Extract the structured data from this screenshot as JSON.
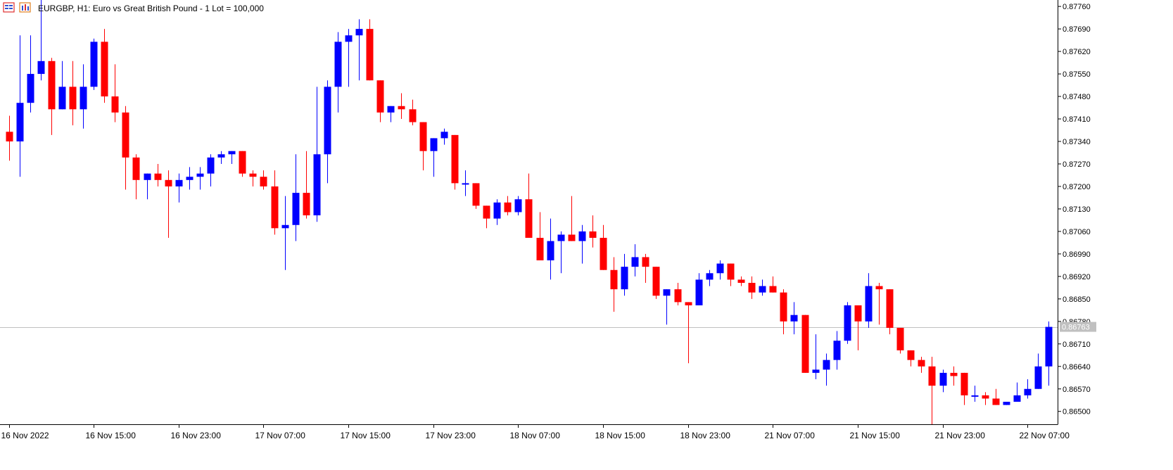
{
  "header": {
    "title": "EURGBP, H1:  Euro vs Great British Pound  - 1 Lot = 100,000"
  },
  "colors": {
    "bull": "#0000ff",
    "bear": "#ff0000",
    "axis": "#000000",
    "price_line": "#c0c0c0",
    "price_tag_bg": "#c0c0c0",
    "price_tag_text": "#ffffff"
  },
  "chart_data": {
    "type": "candlestick",
    "symbol": "EURGBP",
    "timeframe": "H1",
    "current_price": "0.86763",
    "ylim": [
      0.8646,
      0.8778
    ],
    "y_ticks": [
      "0.87760",
      "0.87690",
      "0.87620",
      "0.87550",
      "0.87480",
      "0.87410",
      "0.87340",
      "0.87270",
      "0.87200",
      "0.87130",
      "0.87060",
      "0.86990",
      "0.86920",
      "0.86850",
      "0.86780",
      "0.86710",
      "0.86640",
      "0.86570",
      "0.86500"
    ],
    "x_ticks": [
      {
        "index": 0,
        "label": "16 Nov 2022"
      },
      {
        "index": 8,
        "label": "16 Nov 15:00"
      },
      {
        "index": 16,
        "label": "16 Nov 23:00"
      },
      {
        "index": 24,
        "label": "17 Nov 07:00"
      },
      {
        "index": 32,
        "label": "17 Nov 15:00"
      },
      {
        "index": 40,
        "label": "17 Nov 23:00"
      },
      {
        "index": 48,
        "label": "18 Nov 07:00"
      },
      {
        "index": 56,
        "label": "18 Nov 15:00"
      },
      {
        "index": 64,
        "label": "18 Nov 23:00"
      },
      {
        "index": 72,
        "label": "21 Nov 07:00"
      },
      {
        "index": 80,
        "label": "21 Nov 15:00"
      },
      {
        "index": 88,
        "label": "21 Nov 23:00"
      },
      {
        "index": 96,
        "label": "22 Nov 07:00"
      }
    ],
    "candles": [
      [
        0.8737,
        0.8742,
        0.8728,
        0.8734
      ],
      [
        0.8734,
        0.8767,
        0.8723,
        0.8746
      ],
      [
        0.8746,
        0.8767,
        0.8743,
        0.8755
      ],
      [
        0.8755,
        0.8781,
        0.8753,
        0.8759
      ],
      [
        0.8759,
        0.876,
        0.8736,
        0.8744
      ],
      [
        0.8744,
        0.8759,
        0.8744,
        0.8751
      ],
      [
        0.8751,
        0.8759,
        0.8739,
        0.8744
      ],
      [
        0.8744,
        0.8758,
        0.8738,
        0.8751
      ],
      [
        0.8751,
        0.8766,
        0.875,
        0.8765
      ],
      [
        0.8765,
        0.8769,
        0.8746,
        0.8748
      ],
      [
        0.8748,
        0.8758,
        0.874,
        0.8743
      ],
      [
        0.8743,
        0.8745,
        0.8719,
        0.8729
      ],
      [
        0.8729,
        0.873,
        0.8716,
        0.8722
      ],
      [
        0.8722,
        0.8724,
        0.8716,
        0.8724
      ],
      [
        0.8724,
        0.8727,
        0.872,
        0.8722
      ],
      [
        0.8722,
        0.8725,
        0.8704,
        0.872
      ],
      [
        0.872,
        0.8724,
        0.8715,
        0.8722
      ],
      [
        0.8722,
        0.8726,
        0.8719,
        0.8723
      ],
      [
        0.8723,
        0.8726,
        0.8719,
        0.8724
      ],
      [
        0.8724,
        0.873,
        0.872,
        0.8729
      ],
      [
        0.8729,
        0.8731,
        0.8727,
        0.873
      ],
      [
        0.873,
        0.8731,
        0.8727,
        0.8731
      ],
      [
        0.8731,
        0.8731,
        0.8723,
        0.8724
      ],
      [
        0.8724,
        0.8725,
        0.872,
        0.8723
      ],
      [
        0.8723,
        0.8725,
        0.8719,
        0.872
      ],
      [
        0.872,
        0.8725,
        0.8705,
        0.8707
      ],
      [
        0.8707,
        0.8717,
        0.8694,
        0.8708
      ],
      [
        0.8708,
        0.873,
        0.8703,
        0.8718
      ],
      [
        0.8718,
        0.8731,
        0.871,
        0.8711
      ],
      [
        0.8711,
        0.8751,
        0.8709,
        0.873
      ],
      [
        0.873,
        0.8753,
        0.8721,
        0.8751
      ],
      [
        0.8751,
        0.8768,
        0.8743,
        0.8765
      ],
      [
        0.8765,
        0.8769,
        0.8751,
        0.8767
      ],
      [
        0.8767,
        0.8772,
        0.8753,
        0.8769
      ],
      [
        0.8769,
        0.8772,
        0.8753,
        0.8753
      ],
      [
        0.8753,
        0.8753,
        0.874,
        0.8743
      ],
      [
        0.8743,
        0.8745,
        0.874,
        0.8745
      ],
      [
        0.8745,
        0.8749,
        0.8741,
        0.8744
      ],
      [
        0.8744,
        0.8747,
        0.8739,
        0.874
      ],
      [
        0.874,
        0.874,
        0.8725,
        0.8731
      ],
      [
        0.8731,
        0.8735,
        0.8723,
        0.8735
      ],
      [
        0.8735,
        0.8738,
        0.8733,
        0.8737
      ],
      [
        0.8736,
        0.8736,
        0.8719,
        0.8721
      ],
      [
        0.8721,
        0.8725,
        0.8717,
        0.8721
      ],
      [
        0.8721,
        0.8721,
        0.8713,
        0.8714
      ],
      [
        0.8714,
        0.8714,
        0.8707,
        0.871
      ],
      [
        0.871,
        0.8716,
        0.8708,
        0.8715
      ],
      [
        0.8715,
        0.8717,
        0.8711,
        0.8712
      ],
      [
        0.8712,
        0.8717,
        0.8711,
        0.8716
      ],
      [
        0.8716,
        0.8724,
        0.8704,
        0.8704
      ],
      [
        0.8704,
        0.8712,
        0.8697,
        0.8697
      ],
      [
        0.8697,
        0.871,
        0.8691,
        0.8703
      ],
      [
        0.8703,
        0.8706,
        0.8693,
        0.8705
      ],
      [
        0.8705,
        0.8717,
        0.8703,
        0.8703
      ],
      [
        0.8703,
        0.8708,
        0.8696,
        0.8706
      ],
      [
        0.8706,
        0.8711,
        0.8701,
        0.8704
      ],
      [
        0.8704,
        0.8708,
        0.8694,
        0.8694
      ],
      [
        0.8694,
        0.8698,
        0.8681,
        0.8688
      ],
      [
        0.8688,
        0.8699,
        0.8686,
        0.8695
      ],
      [
        0.8695,
        0.8702,
        0.8692,
        0.8698
      ],
      [
        0.8698,
        0.8699,
        0.869,
        0.8695
      ],
      [
        0.8695,
        0.8695,
        0.8685,
        0.8686
      ],
      [
        0.8686,
        0.8688,
        0.8677,
        0.8688
      ],
      [
        0.8688,
        0.869,
        0.8683,
        0.8684
      ],
      [
        0.8684,
        0.8684,
        0.8665,
        0.8683
      ],
      [
        0.8683,
        0.8693,
        0.8683,
        0.8691
      ],
      [
        0.8691,
        0.8694,
        0.8689,
        0.8693
      ],
      [
        0.8693,
        0.8697,
        0.8691,
        0.8696
      ],
      [
        0.8696,
        0.8696,
        0.8689,
        0.8691
      ],
      [
        0.8691,
        0.8692,
        0.8689,
        0.869
      ],
      [
        0.869,
        0.8692,
        0.8685,
        0.8687
      ],
      [
        0.8687,
        0.8691,
        0.8686,
        0.8689
      ],
      [
        0.8689,
        0.8692,
        0.8687,
        0.8687
      ],
      [
        0.8687,
        0.8688,
        0.8674,
        0.8678
      ],
      [
        0.8678,
        0.8684,
        0.8674,
        0.868
      ],
      [
        0.868,
        0.868,
        0.8662,
        0.8662
      ],
      [
        0.8662,
        0.8674,
        0.866,
        0.8663
      ],
      [
        0.8663,
        0.8668,
        0.8658,
        0.8666
      ],
      [
        0.8666,
        0.8675,
        0.8663,
        0.8672
      ],
      [
        0.8672,
        0.8684,
        0.8671,
        0.8683
      ],
      [
        0.8683,
        0.8683,
        0.8669,
        0.8678
      ],
      [
        0.8678,
        0.8693,
        0.8676,
        0.8689
      ],
      [
        0.8689,
        0.869,
        0.8677,
        0.8688
      ],
      [
        0.8688,
        0.8688,
        0.8674,
        0.8676
      ],
      [
        0.8676,
        0.8676,
        0.8668,
        0.8669
      ],
      [
        0.8669,
        0.8669,
        0.8664,
        0.8666
      ],
      [
        0.8666,
        0.8667,
        0.8662,
        0.8664
      ],
      [
        0.8664,
        0.8667,
        0.8646,
        0.8658
      ],
      [
        0.8658,
        0.8663,
        0.8656,
        0.8662
      ],
      [
        0.8662,
        0.8664,
        0.8658,
        0.8661
      ],
      [
        0.8662,
        0.8662,
        0.8652,
        0.8655
      ],
      [
        0.8655,
        0.8658,
        0.8653,
        0.8655
      ],
      [
        0.8655,
        0.8656,
        0.8652,
        0.8654
      ],
      [
        0.8654,
        0.8657,
        0.8652,
        0.8652
      ],
      [
        0.8652,
        0.8653,
        0.8652,
        0.8653
      ],
      [
        0.8653,
        0.8659,
        0.8653,
        0.8655
      ],
      [
        0.8655,
        0.866,
        0.8654,
        0.8657
      ],
      [
        0.8657,
        0.8668,
        0.8657,
        0.8664
      ],
      [
        0.8664,
        0.8678,
        0.8658,
        0.86763
      ]
    ]
  }
}
